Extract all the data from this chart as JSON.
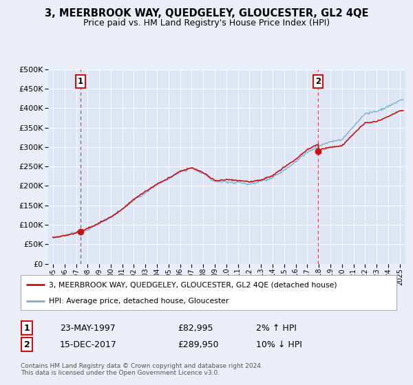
{
  "title": "3, MEERBROOK WAY, QUEDGELEY, GLOUCESTER, GL2 4QE",
  "subtitle": "Price paid vs. HM Land Registry's House Price Index (HPI)",
  "title_fontsize": 10.5,
  "subtitle_fontsize": 9,
  "background_color": "#eaeff7",
  "plot_bg_color": "#dde6f2",
  "hpi_color": "#7aafd4",
  "price_color": "#cc1111",
  "sale1_year": 1997.38,
  "sale1_price": 82995,
  "sale2_year": 2017.95,
  "sale2_price": 289950,
  "legend_entry1": "3, MEERBROOK WAY, QUEDGELEY, GLOUCESTER, GL2 4QE (detached house)",
  "legend_entry2": "HPI: Average price, detached house, Gloucester",
  "table_row1_label": "1",
  "table_row1_date": "23-MAY-1997",
  "table_row1_price": "£82,995",
  "table_row1_hpi": "2% ↑ HPI",
  "table_row2_label": "2",
  "table_row2_date": "15-DEC-2017",
  "table_row2_price": "£289,950",
  "table_row2_hpi": "10% ↓ HPI",
  "footer": "Contains HM Land Registry data © Crown copyright and database right 2024.\nThis data is licensed under the Open Government Licence v3.0.",
  "ylim_min": 0,
  "ylim_max": 500000,
  "xmin": 1994.6,
  "xmax": 2025.5
}
